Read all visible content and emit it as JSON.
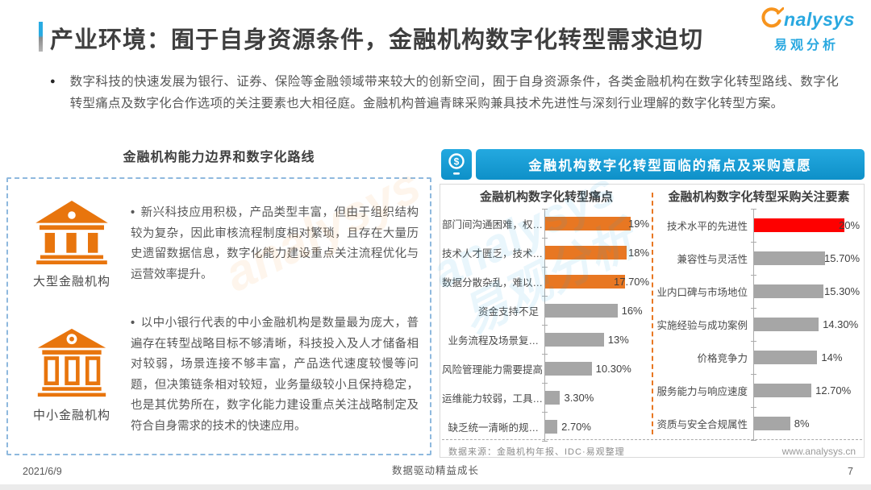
{
  "page": {
    "title": "产业环境：囿于自身资源条件，金融机构数字化转型需求迫切",
    "intro_bullet_glyph": "●",
    "item_bullet_glyph": "•",
    "intro": "数字科技的快速发展为银行、证券、保险等金融领域带来较大的创新空间，囿于自身资源条件，各类金融机构在数字化转型路线、数字化转型痛点及数字化合作选项的关注要素也大相径庭。金融机构普遍青睐采购兼具技术先进性与深刻行业理解的数字化转型方案。",
    "footer": {
      "date": "2021/6/9",
      "slogan": "数据驱动精益成长",
      "page_number": "7"
    }
  },
  "logo": {
    "name_full": "analysys",
    "name_rest": "nalysys",
    "cn": "易观分析"
  },
  "watermark": {
    "en": "analysys",
    "cn": "易观分析"
  },
  "left_panel": {
    "title": "金融机构能力边界和数字化路线",
    "items": [
      {
        "label": "大型金融机构",
        "icon": "bank-solid-icon",
        "text": "新兴科技应用积极，产品类型丰富，但由于组织结构较为复杂，因此审核流程制度相对繁琐，且存在大量历史遗留数据信息，数字化能力建设重点关注流程优化与运营效率提升。"
      },
      {
        "label": "中小金融机构",
        "icon": "bank-outline-icon",
        "text": "以中小银行代表的中小金融机构是数量最为庞大，普遍存在转型战略目标不够清晰，科技投入及人才储备相对较弱，场景连接不够丰富，产品迭代速度较慢等问题，但决策链条相对较短，业务量级较小且保持稳定，也是其优势所在，数字化能力建设重点关注战略制定及符合自身需求的技术的快速应用。"
      }
    ]
  },
  "right_panel": {
    "header": "金融机构数字化转型面临的痛点及采购意愿",
    "header_icon": "mobile-payment-icon",
    "source": "数据来源：金融机构年报、IDC·易观整理",
    "website": "www.analysys.cn"
  },
  "colors": {
    "accent_blue": "#1BA0D8",
    "orange": "#E87722",
    "red": "#FE0000",
    "gray_bar": "#A6A6A6",
    "divider_dashed": "#E87722",
    "left_box_dashed": "#8FB9DE"
  },
  "chart_data": [
    {
      "type": "bar",
      "orientation": "horizontal",
      "title": "金融机构数字化转型痛点",
      "categories": [
        "部门间沟通困难，权…",
        "技术人才匮乏，技术…",
        "数据分散杂乱，难以…",
        "资金支持不足",
        "业务流程及场景复…",
        "风险管理能力需要提高",
        "运维能力较弱，工具…",
        "缺乏统一清晰的规…"
      ],
      "values": [
        19,
        18,
        17.7,
        16,
        13,
        10.3,
        3.3,
        2.7
      ],
      "value_labels": [
        "19%",
        "18%",
        "17.70%",
        "16%",
        "13%",
        "10.30%",
        "3.30%",
        "2.70%"
      ],
      "bar_colors": [
        "#E87722",
        "#E87722",
        "#E87722",
        "#A6A6A6",
        "#A6A6A6",
        "#A6A6A6",
        "#A6A6A6",
        "#A6A6A6"
      ],
      "xlim": [
        0,
        20
      ],
      "grid": false,
      "legend": false
    },
    {
      "type": "bar",
      "orientation": "horizontal",
      "title": "金融机构数字化转型采购关注要素",
      "categories": [
        "技术水平的先进性",
        "兼容性与灵活性",
        "业内口碑与市场地位",
        "实施经验与成功案例",
        "价格竞争力",
        "服务能力与响应速度",
        "资质与安全合规属性"
      ],
      "values": [
        20,
        15.7,
        15.3,
        14.3,
        14,
        12.7,
        8
      ],
      "value_labels": [
        "20%",
        "15.70%",
        "15.30%",
        "14.30%",
        "14%",
        "12.70%",
        "8%"
      ],
      "bar_colors": [
        "#FE0000",
        "#A6A6A6",
        "#A6A6A6",
        "#A6A6A6",
        "#A6A6A6",
        "#A6A6A6",
        "#A6A6A6"
      ],
      "xlim": [
        0,
        20
      ],
      "grid": false,
      "legend": false
    }
  ]
}
